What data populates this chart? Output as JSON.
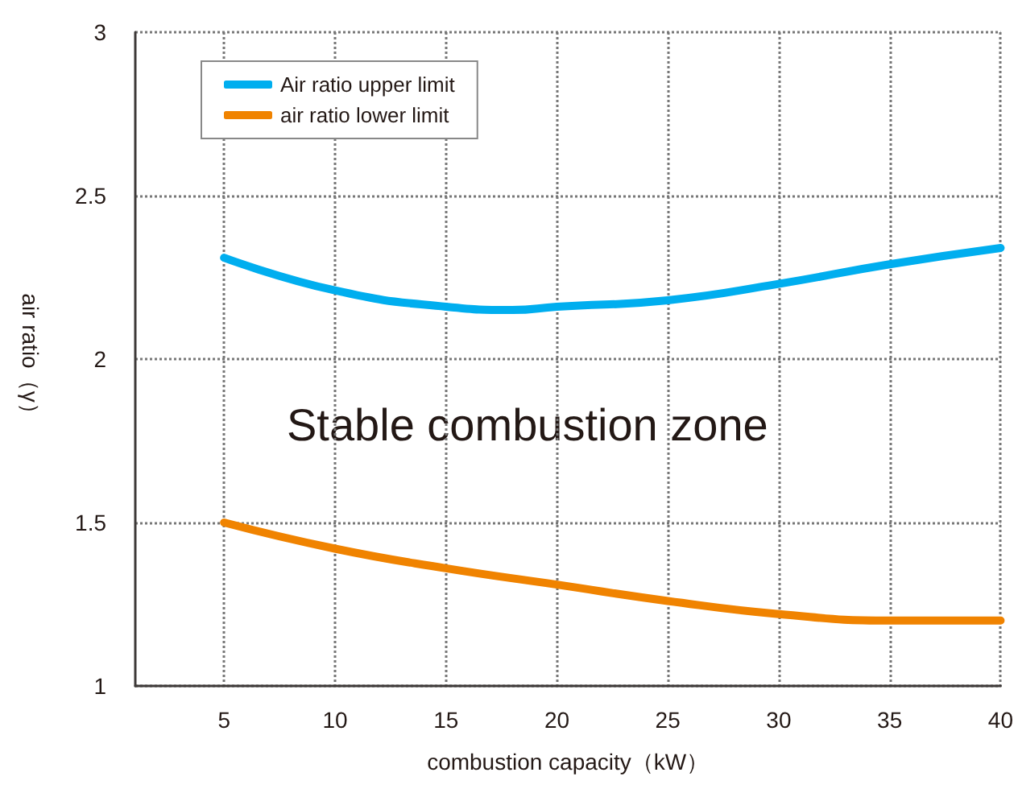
{
  "chart_data": {
    "type": "line",
    "xlabel": "combustion capacity（kW）",
    "ylabel": "air ratio（γ）",
    "annotations": [
      "Stable combustion zone"
    ],
    "x": [
      5,
      10,
      15,
      18,
      20,
      25,
      30,
      35,
      40
    ],
    "series": [
      {
        "name": "Air ratio upper limit",
        "color": "#00aeef",
        "values": [
          2.31,
          2.21,
          2.16,
          2.15,
          2.16,
          2.18,
          2.23,
          2.29,
          2.34
        ]
      },
      {
        "name": "air ratio lower limit",
        "color": "#f08300",
        "values": [
          1.5,
          1.42,
          1.36,
          null,
          1.31,
          1.26,
          1.22,
          1.2,
          1.2
        ]
      }
    ],
    "xlim": [
      1,
      40
    ],
    "xticks": [
      5,
      10,
      15,
      20,
      25,
      30,
      35,
      40
    ],
    "ylim": [
      1,
      3
    ],
    "yticks": [
      1,
      1.5,
      2,
      2.5,
      3
    ],
    "grid": true,
    "legend": "top left",
    "marker": "none",
    "line_style": "solid"
  }
}
